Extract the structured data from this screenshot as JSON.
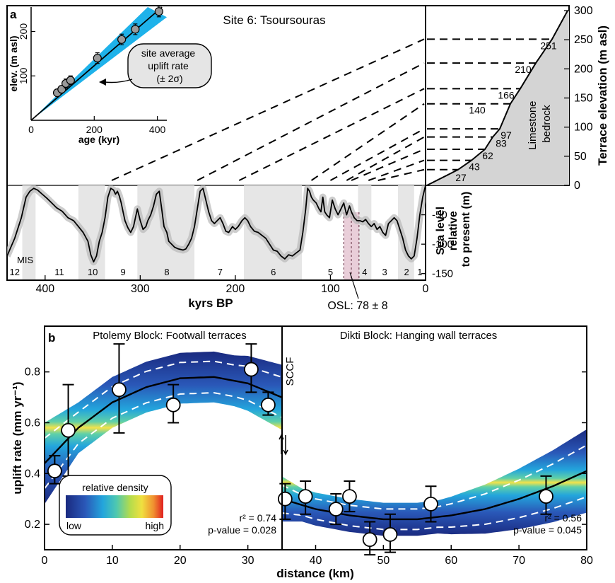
{
  "panel_a": {
    "label": "a",
    "site_title": "Site 6: Tsoursouras",
    "inset": {
      "xlabel": "age (kyr)",
      "ylabel": "elev. (m asl)",
      "xticks": [
        "0",
        "200",
        "400"
      ],
      "yticks": [
        "100",
        "200"
      ],
      "callout": [
        "site average",
        "uplift rate",
        "(± 2σ)"
      ]
    },
    "terrace_axis_label": "Terrace elevation (m asl)",
    "terrace_ticks": [
      "0",
      "50",
      "100",
      "150",
      "200",
      "250",
      "300"
    ],
    "bedrock_label": [
      "Limestone",
      "bedrock"
    ],
    "terrace_labels": [
      "27",
      "43",
      "62",
      "83",
      "97",
      "140",
      "166",
      "210",
      "251"
    ],
    "sealevel_ylabel": [
      "Sea level",
      "relative",
      "to present (m)"
    ],
    "sealevel_ticks": [
      "-50",
      "-100",
      "-150"
    ],
    "time_ticks": [
      "400",
      "300",
      "200",
      "100",
      "0"
    ],
    "time_label": "kyrs BP",
    "mis_label": "MIS",
    "mis_numbers": [
      "12",
      "11",
      "10",
      "9",
      "8",
      "7",
      "6",
      "5",
      "4",
      "3",
      "2",
      "1"
    ],
    "osl_label": "OSL: 78 ± 8"
  },
  "panel_b": {
    "label": "b",
    "left_title": "Ptolemy Block: Footwall terraces",
    "right_title": "Dikti Block: Hanging wall terraces",
    "fault_label": "SCCF",
    "ylabel": "uplift rate (mm yr⁻¹)",
    "xlabel": "distance (km)",
    "xticks": [
      "0",
      "10",
      "20",
      "30",
      "40",
      "50",
      "60",
      "70",
      "80"
    ],
    "yticks": [
      "0.2",
      "0.4",
      "0.6",
      "0.8"
    ],
    "legend_title": "relative density",
    "legend_low": "low",
    "legend_high": "high",
    "left_stats": [
      "r² = 0.74",
      "p-value = 0.028"
    ],
    "right_stats": [
      "r² = 0.56",
      "p-value = 0.045"
    ]
  },
  "colors": {
    "band_cyan": "#29b5e8",
    "density_dark": "#24318f",
    "density_mid": "#21a6d6",
    "density_hot": "#f0e040",
    "mis_shade": "#e6e6e6",
    "osl": "#e8c8d4"
  },
  "chart_data": [
    {
      "type": "scatter",
      "name": "inset age vs elevation",
      "x": [
        83,
        97,
        110,
        125,
        210,
        287,
        330,
        405
      ],
      "y": [
        62,
        70,
        83,
        90,
        140,
        182,
        205,
        245
      ],
      "yerr": [
        8,
        8,
        10,
        10,
        12,
        12,
        12,
        12
      ],
      "xlim": [
        0,
        430
      ],
      "ylim": [
        0,
        255
      ],
      "fit": {
        "slope": 0.615,
        "band_low": 0.54,
        "band_high": 0.69
      }
    },
    {
      "type": "line",
      "name": "sea level curve",
      "xlim": [
        440,
        0
      ],
      "ylim": [
        -160,
        0
      ],
      "x": [
        440,
        432,
        425,
        420,
        416,
        412,
        408,
        403,
        398,
        393,
        388,
        382,
        376,
        370,
        365,
        360,
        355,
        352,
        349,
        346,
        343,
        340,
        337,
        334,
        331,
        328,
        326,
        324,
        322,
        320,
        318,
        316,
        313,
        310,
        307,
        305,
        303,
        300,
        297,
        294,
        292,
        289,
        286,
        283,
        280,
        277,
        275,
        272,
        270,
        267,
        264,
        260,
        255,
        252,
        249,
        246,
        243,
        240,
        237,
        234,
        231,
        228,
        225,
        222,
        219,
        216,
        213,
        210,
        207,
        203,
        200,
        197,
        193,
        190,
        187,
        184,
        180,
        176,
        172,
        168,
        164,
        160,
        156,
        152,
        148,
        144,
        140,
        136,
        132,
        129,
        126,
        124,
        122,
        120,
        118,
        115,
        112,
        110,
        108,
        106,
        104,
        101,
        98,
        95,
        92,
        89,
        86,
        83,
        80,
        78,
        75,
        72,
        69,
        66,
        63,
        60,
        57,
        54,
        51,
        48,
        45,
        42,
        39,
        36,
        33,
        30,
        27,
        24,
        21,
        18,
        15,
        12,
        9,
        6,
        3,
        0
      ],
      "y": [
        -120,
        -90,
        -55,
        -20,
        -10,
        -5,
        -8,
        -15,
        -22,
        -30,
        -38,
        -44,
        -55,
        -60,
        -70,
        -80,
        -95,
        -118,
        -130,
        -120,
        -95,
        -80,
        -55,
        -20,
        -5,
        -8,
        -15,
        -10,
        -18,
        -30,
        -45,
        -60,
        -72,
        -80,
        -70,
        -55,
        -40,
        -60,
        -75,
        -70,
        -60,
        -50,
        -35,
        -15,
        -10,
        -45,
        -70,
        -80,
        -95,
        -100,
        -105,
        -108,
        -110,
        -108,
        -100,
        -90,
        -70,
        -40,
        -10,
        -5,
        -25,
        -45,
        -60,
        -65,
        -60,
        -55,
        -65,
        -78,
        -80,
        -70,
        -75,
        -70,
        -60,
        -55,
        -60,
        -70,
        -78,
        -80,
        -85,
        -90,
        -100,
        -110,
        -112,
        -120,
        -125,
        -118,
        -120,
        -115,
        -110,
        -80,
        -40,
        -5,
        -10,
        -20,
        -25,
        -30,
        -40,
        -45,
        -20,
        -45,
        -50,
        -55,
        -25,
        -40,
        -50,
        -40,
        -30,
        -50,
        -35,
        -45,
        -55,
        -60,
        -60,
        -62,
        -58,
        -65,
        -70,
        -65,
        -75,
        -70,
        -80,
        -85,
        -65,
        -60,
        -55,
        -60,
        -75,
        -90,
        -110,
        -120,
        -125,
        -120,
        -90,
        -50,
        -20,
        0
      ]
    },
    {
      "type": "line",
      "name": "terrace profile",
      "ylim": [
        0,
        300
      ],
      "terraces": [
        27,
        43,
        62,
        83,
        97,
        140,
        166,
        210,
        251
      ],
      "terrace_ages_kyr": [
        50,
        60,
        78,
        83,
        100,
        120,
        196,
        240,
        330
      ]
    },
    {
      "type": "scatter",
      "name": "Ptolemy Block footwall uplift rates",
      "xlim": [
        0,
        80
      ],
      "ylim": [
        0.1,
        0.98
      ],
      "x": [
        1.5,
        3.5,
        11,
        19,
        30.5,
        33
      ],
      "y": [
        0.41,
        0.57,
        0.73,
        0.67,
        0.81,
        0.67
      ],
      "err_low": [
        0.36,
        0.39,
        0.56,
        0.6,
        0.72,
        0.63
      ],
      "err_high": [
        0.47,
        0.75,
        0.91,
        0.75,
        0.91,
        0.72
      ],
      "fit_x": [
        0,
        5,
        10,
        15,
        20,
        25,
        30,
        35
      ],
      "fit_y": [
        0.44,
        0.58,
        0.68,
        0.74,
        0.775,
        0.78,
        0.755,
        0.7
      ]
    },
    {
      "type": "scatter",
      "name": "Dikti Block hanging wall uplift rates",
      "x": [
        35.5,
        38.5,
        43,
        45,
        48,
        51,
        57,
        74
      ],
      "y": [
        0.3,
        0.31,
        0.26,
        0.31,
        0.14,
        0.16,
        0.28,
        0.31
      ],
      "err_low": [
        0.22,
        0.24,
        0.2,
        0.25,
        0.08,
        0.09,
        0.21,
        0.24
      ],
      "err_high": [
        0.36,
        0.37,
        0.32,
        0.37,
        0.21,
        0.24,
        0.35,
        0.39
      ],
      "fit_x": [
        35,
        40,
        45,
        50,
        55,
        60,
        65,
        70,
        75,
        80
      ],
      "fit_y": [
        0.3,
        0.26,
        0.235,
        0.22,
        0.22,
        0.235,
        0.26,
        0.3,
        0.35,
        0.41
      ]
    }
  ]
}
